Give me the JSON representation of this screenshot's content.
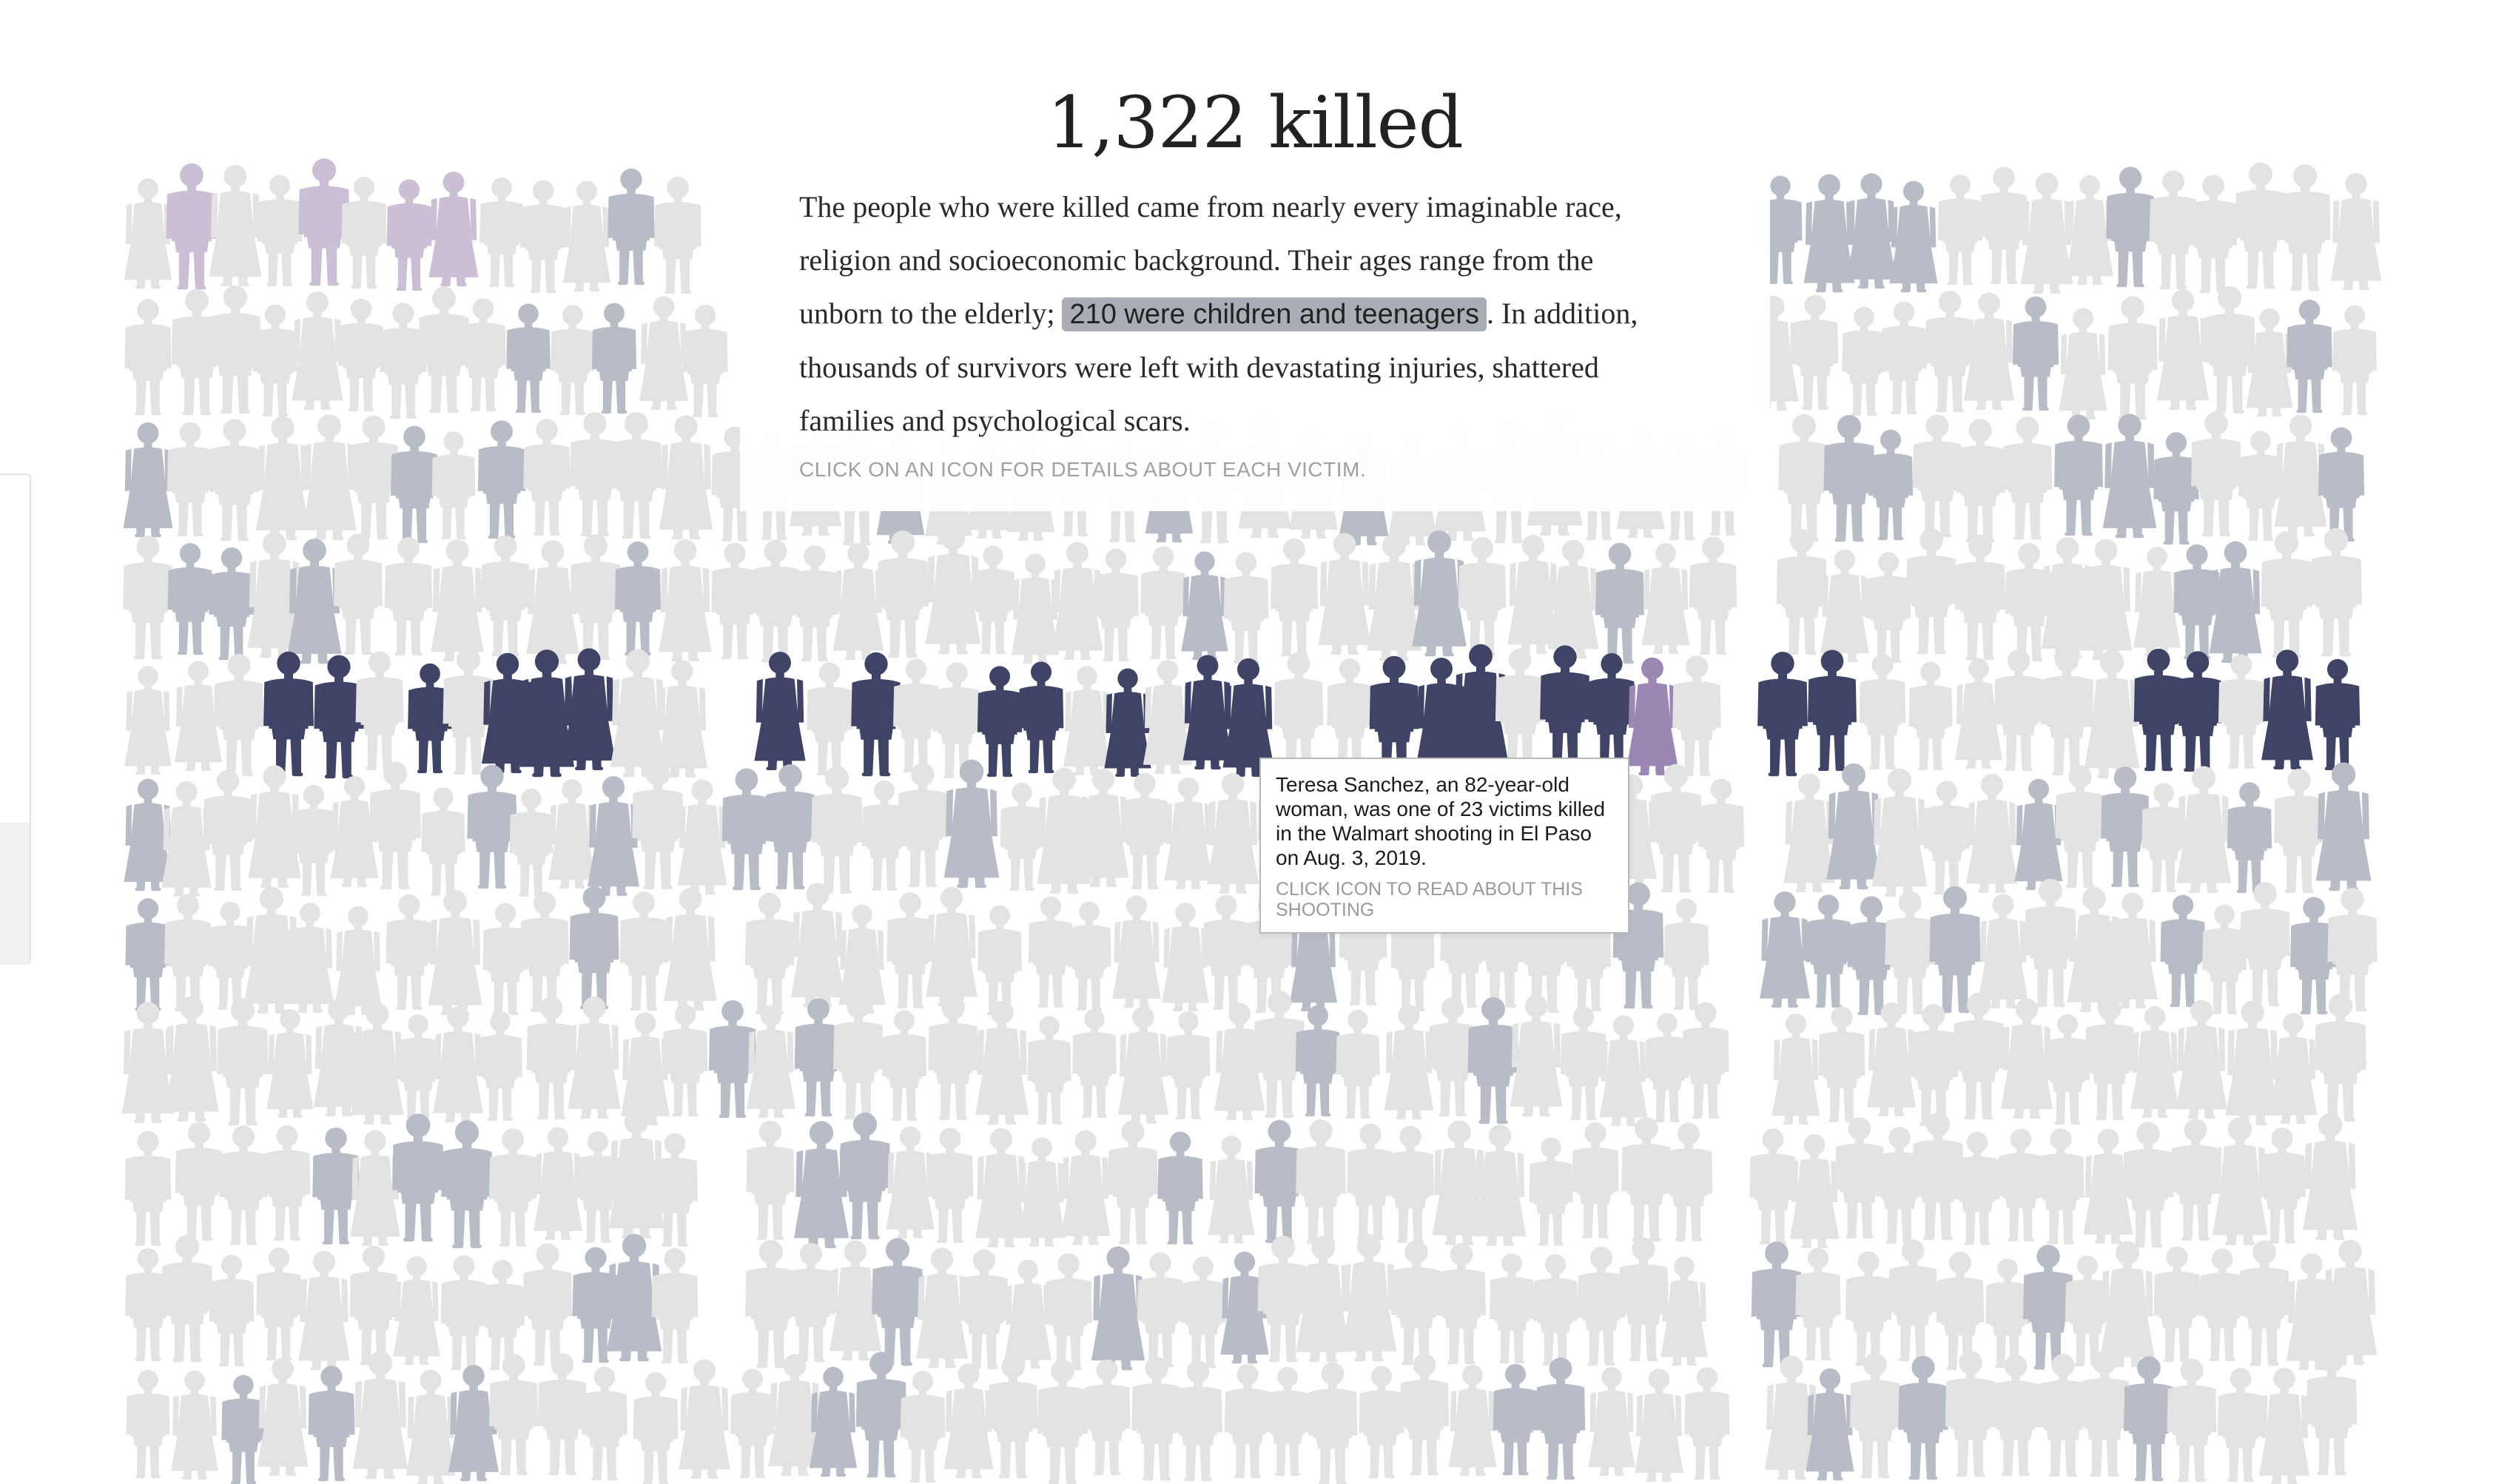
{
  "title": "1,322 killed",
  "intro": {
    "text_before": "The people who were killed came from nearly every imaginable race, religion and socioeconomic background. Their ages range from the unborn to the elderly; ",
    "highlight": "210 were children and teenagers",
    "text_after": ". In addition, thousands of survivors were left with devastating injuries, shattered families and psychological scars.",
    "instruction": "CLICK ON AN ICON FOR DETAILS ABOUT EACH VICTIM."
  },
  "tooltip": {
    "text": "Teresa Sanchez, an 82-year-old woman, was one of 23 victims killed in the Walmart shooting in El Paso on Aug. 3, 2019.",
    "link": "CLICK ICON TO READ ABOUT THIS SHOOTING"
  },
  "colors": {
    "default_figure": "#e3e3e3",
    "gray_highlight": "#b8bcc6",
    "selected_shooting": "#3f4466",
    "selected_victim": "#9b86b4",
    "lavender": "#cbbfd6",
    "highlight_bg": "#a9adb6"
  },
  "icons": {
    "figure": "person-silhouette-icon"
  }
}
